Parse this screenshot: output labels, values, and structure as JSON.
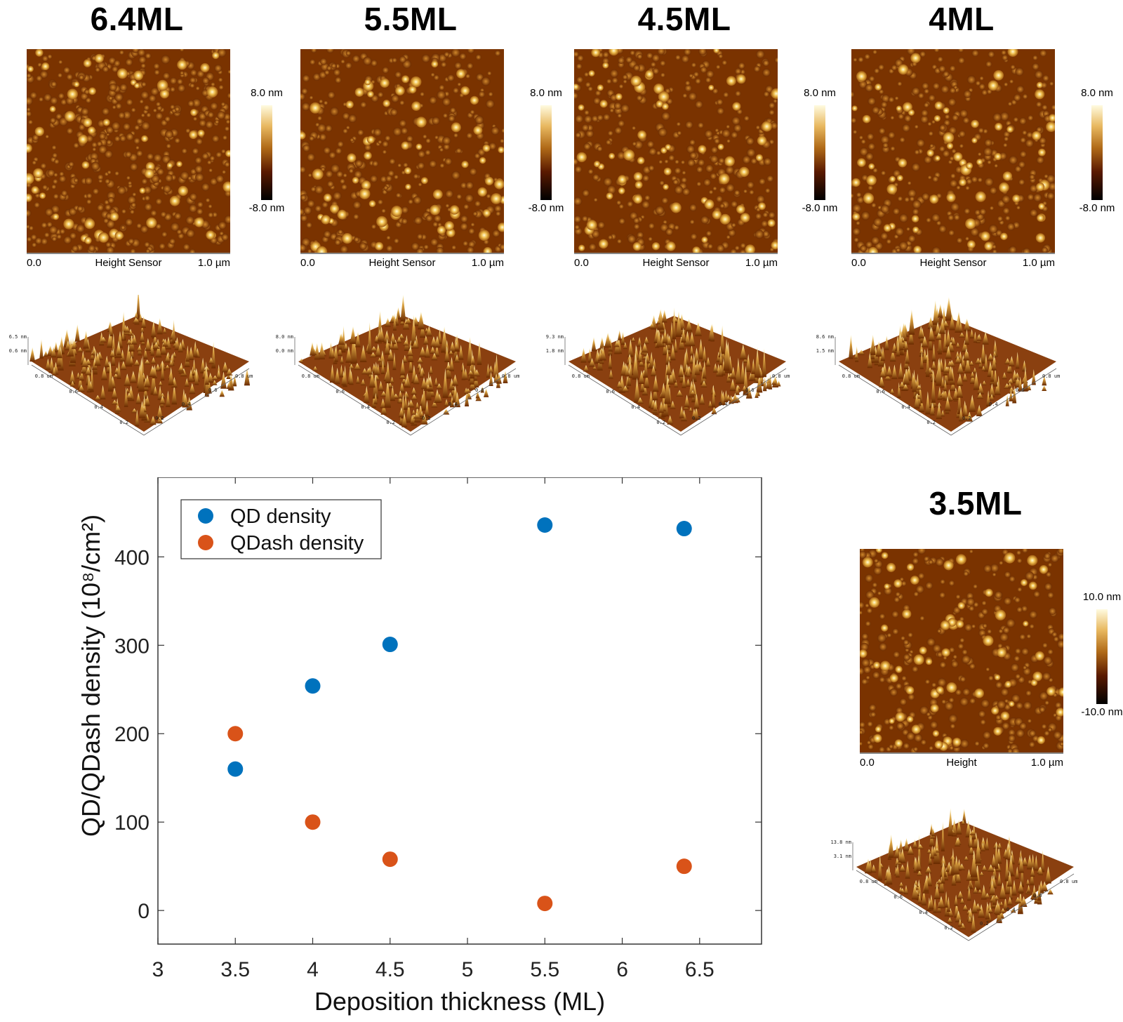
{
  "panels": [
    {
      "title": "6.4ML",
      "colorbar_max": "8.0 nm",
      "colorbar_min": "-8.0 nm",
      "axis_start": "0.0",
      "axis_label": "Height Sensor",
      "axis_end": "1.0 µm",
      "z_top": "6.5 nm",
      "z_bot": "0.6 nm"
    },
    {
      "title": "5.5ML",
      "colorbar_max": "8.0 nm",
      "colorbar_min": "-8.0 nm",
      "axis_start": "0.0",
      "axis_label": "Height Sensor",
      "axis_end": "1.0 µm",
      "z_top": "8.0 nm",
      "z_bot": "0.0 nm"
    },
    {
      "title": "4.5ML",
      "colorbar_max": "8.0 nm",
      "colorbar_min": "-8.0 nm",
      "axis_start": "0.0",
      "axis_label": "Height Sensor",
      "axis_end": "1.0 µm",
      "z_top": "9.3 nm",
      "z_bot": "1.8 nm"
    },
    {
      "title": "4ML",
      "colorbar_max": "8.0 nm",
      "colorbar_min": "-8.0 nm",
      "axis_start": "0.0",
      "axis_label": "Height Sensor",
      "axis_end": "1.0 µm",
      "z_top": "8.6 nm",
      "z_bot": "1.5 nm"
    },
    {
      "title": "3.5ML",
      "colorbar_max": "10.0 nm",
      "colorbar_min": "-10.0 nm",
      "axis_start": "0.0",
      "axis_label": "Height",
      "axis_end": "1.0 µm",
      "z_top": "13.8 nm",
      "z_bot": "3.1 nm"
    }
  ],
  "view3d_ticks": {
    "left": [
      "0.8 um",
      "0.6",
      "0.4",
      "0.2"
    ],
    "right": [
      "0.8 um",
      "0.6",
      "0.4",
      "0.2"
    ]
  },
  "colors": {
    "qd": "#0072BD",
    "qdash": "#D95319",
    "afm_dark": "#3a1200",
    "afm_light": "#fff3b0"
  },
  "chart_data": {
    "type": "scatter",
    "xlabel": "Deposition thickness (ML)",
    "ylabel": "QD/QDash density (10⁸/cm²)",
    "xlim": [
      3,
      6.9
    ],
    "ylim": [
      -38,
      490
    ],
    "xticks": [
      "3",
      "3.5",
      "4",
      "4.5",
      "5",
      "5.5",
      "6",
      "6.5"
    ],
    "yticks": [
      "0",
      "100",
      "200",
      "300",
      "400"
    ],
    "legend_position": "top-left",
    "grid": false,
    "series": [
      {
        "name": "QD density",
        "color": "#0072BD",
        "x": [
          3.5,
          4.0,
          4.5,
          5.5,
          6.4
        ],
        "y": [
          160,
          254,
          301,
          436,
          432
        ]
      },
      {
        "name": "QDash density",
        "color": "#D95319",
        "x": [
          3.5,
          4.0,
          4.5,
          5.5,
          6.4
        ],
        "y": [
          200,
          100,
          58,
          8,
          50
        ]
      }
    ]
  }
}
